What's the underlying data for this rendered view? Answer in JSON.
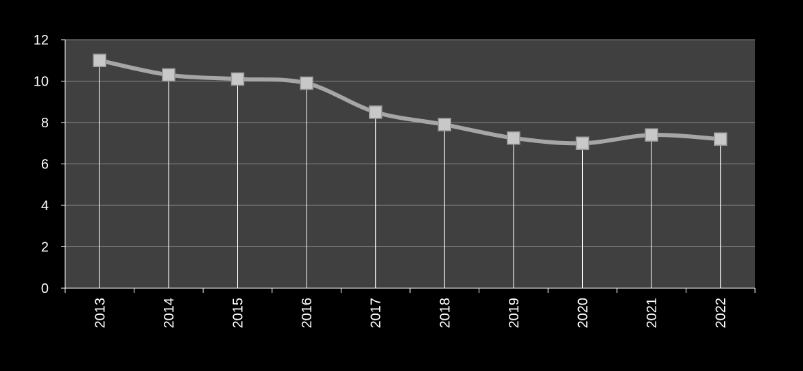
{
  "chart_data": {
    "type": "line",
    "categories": [
      "2013",
      "2014",
      "2015",
      "2016",
      "2017",
      "2018",
      "2019",
      "2020",
      "2021",
      "2022"
    ],
    "series": [
      {
        "values": [
          11.0,
          10.3,
          10.1,
          9.9,
          8.5,
          7.9,
          7.25,
          7.0,
          7.4,
          7.2
        ]
      }
    ],
    "ylim": [
      0,
      12
    ],
    "yticks": [
      "0",
      "2",
      "4",
      "6",
      "8",
      "10",
      "12"
    ],
    "grid": true,
    "drop_lines": true,
    "smooth": true,
    "marker": "square",
    "colors": {
      "background": "#000000",
      "plot_area": "#404040",
      "gridline": "#8a8a8a",
      "drop_line": "#ffffff",
      "series_line": "#a6a6a6",
      "marker_fill": "#c8c8c8",
      "axis": "#ffffff",
      "text": "#ffffff"
    }
  }
}
